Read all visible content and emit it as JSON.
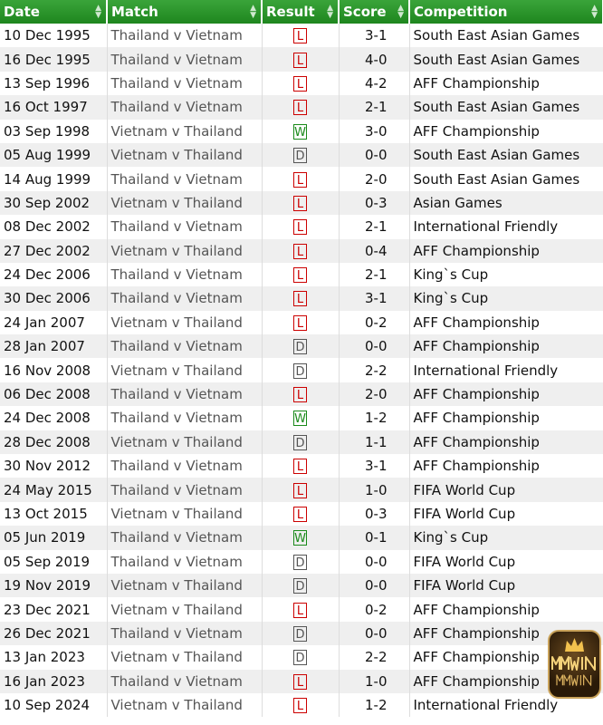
{
  "headers": [
    "Date",
    "Match",
    "Result",
    "Score",
    "Competition"
  ],
  "rows": [
    [
      "10 Dec 1995",
      "Thailand v Vietnam",
      "L",
      "3-1",
      "South East Asian Games"
    ],
    [
      "16 Dec 1995",
      "Thailand v Vietnam",
      "L",
      "4-0",
      "South East Asian Games"
    ],
    [
      "13 Sep 1996",
      "Thailand v Vietnam",
      "L",
      "4-2",
      "AFF Championship"
    ],
    [
      "16 Oct 1997",
      "Thailand v Vietnam",
      "L",
      "2-1",
      "South East Asian Games"
    ],
    [
      "03 Sep 1998",
      "Vietnam v Thailand",
      "W",
      "3-0",
      "AFF Championship"
    ],
    [
      "05 Aug 1999",
      "Vietnam v Thailand",
      "D",
      "0-0",
      "South East Asian Games"
    ],
    [
      "14 Aug 1999",
      "Thailand v Vietnam",
      "L",
      "2-0",
      "South East Asian Games"
    ],
    [
      "30 Sep 2002",
      "Vietnam v Thailand",
      "L",
      "0-3",
      "Asian Games"
    ],
    [
      "08 Dec 2002",
      "Thailand v Vietnam",
      "L",
      "2-1",
      "International Friendly"
    ],
    [
      "27 Dec 2002",
      "Vietnam v Thailand",
      "L",
      "0-4",
      "AFF Championship"
    ],
    [
      "24 Dec 2006",
      "Thailand v Vietnam",
      "L",
      "2-1",
      "King`s Cup"
    ],
    [
      "30 Dec 2006",
      "Thailand v Vietnam",
      "L",
      "3-1",
      "King`s Cup"
    ],
    [
      "24 Jan 2007",
      "Vietnam v Thailand",
      "L",
      "0-2",
      "AFF Championship"
    ],
    [
      "28 Jan 2007",
      "Thailand v Vietnam",
      "D",
      "0-0",
      "AFF Championship"
    ],
    [
      "16 Nov 2008",
      "Vietnam v Thailand",
      "D",
      "2-2",
      "International Friendly"
    ],
    [
      "06 Dec 2008",
      "Thailand v Vietnam",
      "L",
      "2-0",
      "AFF Championship"
    ],
    [
      "24 Dec 2008",
      "Thailand v Vietnam",
      "W",
      "1-2",
      "AFF Championship"
    ],
    [
      "28 Dec 2008",
      "Vietnam v Thailand",
      "D",
      "1-1",
      "AFF Championship"
    ],
    [
      "30 Nov 2012",
      "Thailand v Vietnam",
      "L",
      "3-1",
      "AFF Championship"
    ],
    [
      "24 May 2015",
      "Thailand v Vietnam",
      "L",
      "1-0",
      "FIFA World Cup"
    ],
    [
      "13 Oct 2015",
      "Vietnam v Thailand",
      "L",
      "0-3",
      "FIFA World Cup"
    ],
    [
      "05 Jun 2019",
      "Thailand v Vietnam",
      "W",
      "0-1",
      "King`s Cup"
    ],
    [
      "05 Sep 2019",
      "Thailand v Vietnam",
      "D",
      "0-0",
      "FIFA World Cup"
    ],
    [
      "19 Nov 2019",
      "Vietnam v Thailand",
      "D",
      "0-0",
      "FIFA World Cup"
    ],
    [
      "23 Dec 2021",
      "Vietnam v Thailand",
      "L",
      "0-2",
      "AFF Championship"
    ],
    [
      "26 Dec 2021",
      "Thailand v Vietnam",
      "D",
      "0-0",
      "AFF Championship"
    ],
    [
      "13 Jan 2023",
      "Vietnam v Thailand",
      "D",
      "2-2",
      "AFF Championship"
    ],
    [
      "16 Jan 2023",
      "Thailand v Vietnam",
      "L",
      "1-0",
      "AFF Championship"
    ],
    [
      "10 Sep 2024",
      "Vietnam v Thailand",
      "L",
      "1-2",
      "International Friendly"
    ]
  ],
  "logo": {
    "text": "MMWIN"
  },
  "colors": {
    "header": "#2a962a",
    "loss": "#cc0000",
    "win": "#1a8a1a",
    "draw": "#555555"
  }
}
